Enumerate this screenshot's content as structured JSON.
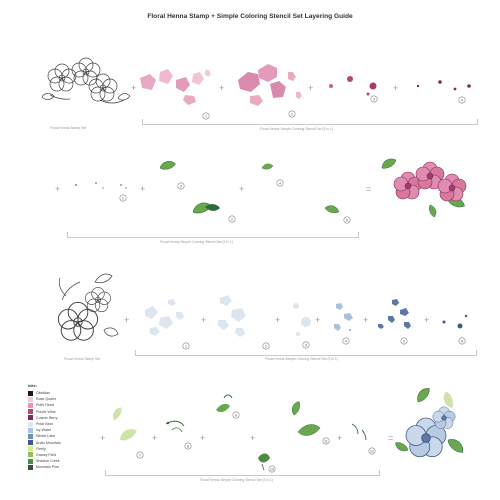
{
  "title": "Floral Henna Stamp + Simple Coloring Stencil Set Layering Guide",
  "captions": {
    "stamp_top": "Floral Henna Stamp Set",
    "stencil_top_a": "Floral Henna Simple Coloring Stencil Set (5 in 1)",
    "stencil_top_b": "Floral Henna Simple Coloring Stencil Set (5 in 1)",
    "stamp_bottom": "Floral Henna Stamp Set",
    "stencil_bottom_a": "Floral Henna Simple Coloring Stencil Set (5 in 1)",
    "stencil_bottom_b": "Floral Henna Simple Coloring Stencil Set (5 in 1)"
  },
  "steps": {
    "r1": [
      "1",
      "2",
      "3",
      "4"
    ],
    "r2": [
      "1",
      "2",
      "3",
      "4",
      "5"
    ],
    "r3": [
      "1",
      "2",
      "3",
      "4",
      "5",
      "6"
    ],
    "r4": [
      "7",
      "8",
      "9",
      "10",
      "11",
      "12"
    ]
  },
  "legend": {
    "heading": "Inks:",
    "items": [
      {
        "name": "Obsidian",
        "color": "#1a1a1a"
      },
      {
        "name": "Rose Quartz",
        "color": "#f3c9d6"
      },
      {
        "name": "Puffy Heart",
        "color": "#ee8fb3"
      },
      {
        "name": "Purple Wine",
        "color": "#b4457a"
      },
      {
        "name": "Cosmic Berry",
        "color": "#7f2b5b"
      },
      {
        "name": "Polar Bear",
        "color": "#dfe8f0"
      },
      {
        "name": "Icy Water",
        "color": "#a9c4de"
      },
      {
        "name": "Winter Lake",
        "color": "#6f8fbf"
      },
      {
        "name": "Arctic Mountain",
        "color": "#3f5a8a"
      },
      {
        "name": "Firefly",
        "color": "#d9e98f"
      },
      {
        "name": "Grassy Field",
        "color": "#8fc060"
      },
      {
        "name": "Shadow Creek",
        "color": "#4f8a47"
      },
      {
        "name": "Mountain Pine",
        "color": "#2d5a34"
      }
    ]
  },
  "colors": {
    "pink_light": "#f3c9d6",
    "pink": "#e18bb0",
    "berry": "#a63a6c",
    "blue_light": "#dde6ef",
    "blue": "#a9c2dc",
    "blue_dark": "#5d78a6",
    "green_light": "#cfe3a9",
    "green": "#6aa84f",
    "green_dark": "#2f6b3a",
    "line": "#c9c9c9",
    "operator": "#9a9a9a"
  }
}
